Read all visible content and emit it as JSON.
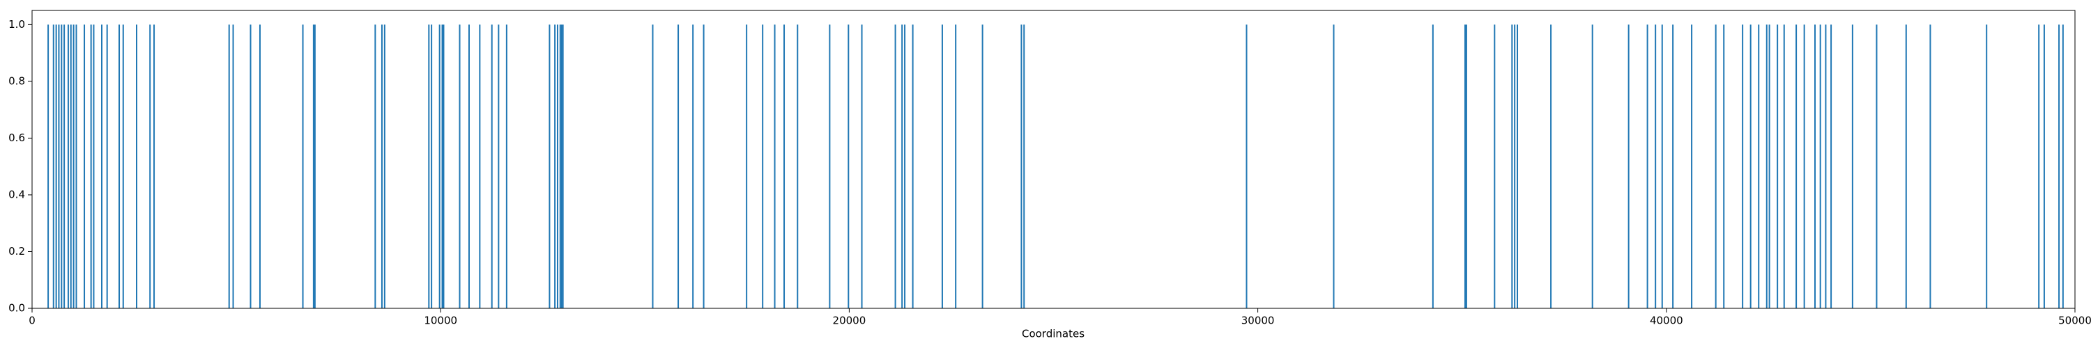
{
  "chart_data": {
    "type": "vlines",
    "xlabel": "Coordinates",
    "color": "#1f77b4",
    "x": [
      394,
      525,
      591,
      656,
      722,
      787,
      886,
      951,
      1017,
      1083,
      1280,
      1444,
      1509,
      1706,
      1837,
      2133,
      2231,
      2559,
      2887,
      2986,
      4823,
      4922,
      5348,
      5578,
      6628,
      6890,
      6923,
      8399,
      8563,
      8629,
      9712,
      9777,
      9974,
      10040,
      10073,
      10466,
      10696,
      10958,
      11254,
      11418,
      11615,
      12665,
      12796,
      12862,
      12927,
      12960,
      12993,
      15191,
      15815,
      16175,
      16438,
      17488,
      17881,
      18177,
      18407,
      18735,
      19522,
      19981,
      20309,
      21129,
      21293,
      21359,
      21556,
      22278,
      22606,
      23262,
      24214,
      24279,
      29725,
      31858,
      34286,
      35073,
      35106,
      35795,
      36222,
      36287,
      36353,
      37173,
      38190,
      39076,
      39536,
      39733,
      39897,
      40159,
      40619,
      41209,
      41406,
      41865,
      42062,
      42259,
      42456,
      42521,
      42718,
      42882,
      43178,
      43375,
      43637,
      43768,
      43900,
      44031,
      44556,
      45146,
      45868,
      46459,
      47837,
      49116,
      49248,
      49609,
      49707
    ],
    "values": [
      1,
      1,
      1,
      1,
      1,
      1,
      1,
      1,
      1,
      1,
      1,
      1,
      1,
      1,
      1,
      1,
      1,
      1,
      1,
      1,
      1,
      1,
      1,
      1,
      1,
      1,
      1,
      1,
      1,
      1,
      1,
      1,
      1,
      1,
      1,
      1,
      1,
      1,
      1,
      1,
      1,
      1,
      1,
      1,
      1,
      1,
      1,
      1,
      1,
      1,
      1,
      1,
      1,
      1,
      1,
      1,
      1,
      1,
      1,
      1,
      1,
      1,
      1,
      1,
      1,
      1,
      1,
      1,
      1,
      1,
      1,
      1,
      1,
      1,
      1,
      1,
      1,
      1,
      1,
      1,
      1,
      1,
      1,
      1,
      1,
      1,
      1,
      1,
      1,
      1,
      1,
      1,
      1,
      1,
      1,
      1,
      1,
      1,
      1,
      1,
      1,
      1,
      1,
      1,
      1,
      1,
      1,
      1,
      1
    ],
    "xlim": [
      0,
      50000
    ],
    "xticks": [
      0,
      10000,
      20000,
      30000,
      40000,
      50000
    ],
    "ylim": [
      0,
      1.05
    ],
    "yticks": [
      {
        "value": 0,
        "label": "0.0"
      },
      0.2,
      0.4,
      0.6,
      0.8,
      {
        "value": 1,
        "label": "1.0"
      }
    ]
  }
}
